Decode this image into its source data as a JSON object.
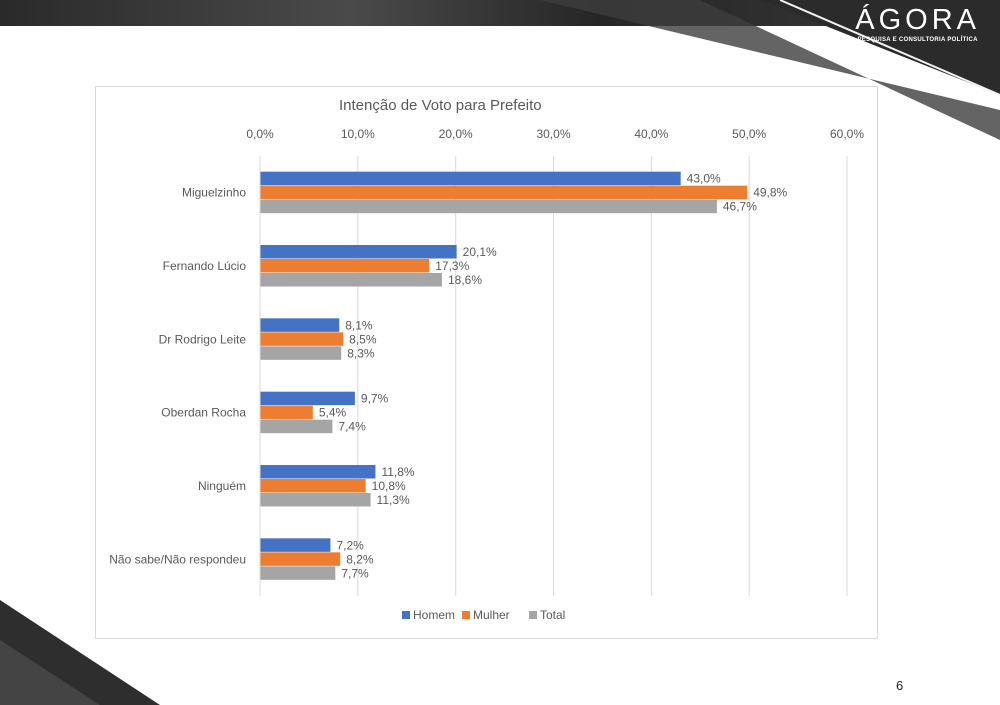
{
  "brand": {
    "logo_text": "ÁGORA",
    "tagline": "PESQUISA E CONSULTORIA POLÍTICA"
  },
  "page": {
    "number": "6"
  },
  "colors": {
    "homem": "#4472c4",
    "mulher": "#ed7d31",
    "total": "#a5a5a5",
    "grid": "#d9d9d9",
    "text": "#595959"
  },
  "chart_data": {
    "type": "bar",
    "orientation": "horizontal",
    "title": "Intenção de Voto para Prefeito",
    "categories": [
      "Miguelzinho",
      "Fernando Lúcio",
      "Dr Rodrigo Leite",
      "Oberdan Rocha",
      "Ninguém",
      "Não sabe/Não respondeu"
    ],
    "series": [
      {
        "name": "Homem",
        "values": [
          43.0,
          20.1,
          8.1,
          9.7,
          11.8,
          7.2
        ],
        "labels": [
          "43,0%",
          "20,1%",
          "8,1%",
          "9,7%",
          "11,8%",
          "7,2%"
        ]
      },
      {
        "name": "Mulher",
        "values": [
          49.8,
          17.3,
          8.5,
          5.4,
          10.8,
          8.2
        ],
        "labels": [
          "49,8%",
          "17,3%",
          "8,5%",
          "5,4%",
          "10,8%",
          "8,2%"
        ]
      },
      {
        "name": "Total",
        "values": [
          46.7,
          18.6,
          8.3,
          7.4,
          11.3,
          7.7
        ],
        "labels": [
          "46,7%",
          "18,6%",
          "8,3%",
          "7,4%",
          "11,3%",
          "7,7%"
        ]
      }
    ],
    "xlim": [
      0,
      60
    ],
    "xticks": [
      0,
      10,
      20,
      30,
      40,
      50,
      60
    ],
    "xtick_labels": [
      "0,0%",
      "10,0%",
      "20,0%",
      "30,0%",
      "40,0%",
      "50,0%",
      "60,0%"
    ],
    "xaxis_position": "top",
    "grid": true,
    "legend_position": "bottom",
    "xlabel": "",
    "ylabel": ""
  }
}
